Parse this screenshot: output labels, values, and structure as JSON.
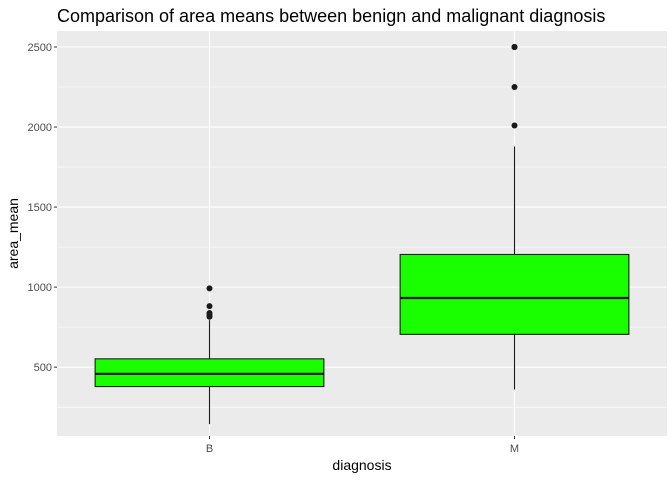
{
  "chart_data": {
    "type": "boxplot",
    "title": "Comparison of area means between benign and malignant diagnosis",
    "xlabel": "diagnosis",
    "ylabel": "area_mean",
    "categories": [
      "B",
      "M"
    ],
    "ylim": [
      70,
      2600
    ],
    "yticks": [
      500,
      1000,
      1500,
      2000,
      2500
    ],
    "ytick_labels": [
      "500",
      "1000",
      "1500",
      "2000",
      "2500"
    ],
    "grid": true,
    "legend": "none",
    "colors": {
      "box_fill": "#1aff00",
      "panel_bg": "#ebebeb",
      "grid": "#ffffff",
      "line": "#1a1a1a"
    },
    "boxes": [
      {
        "category": "B",
        "whisker_low": 144,
        "q1": 379,
        "median": 458,
        "q3": 552,
        "whisker_high": 794,
        "outliers": [
          992,
          881,
          838,
          825,
          815
        ]
      },
      {
        "category": "M",
        "whisker_low": 361,
        "q1": 705,
        "median": 932,
        "q3": 1204,
        "whisker_high": 1878,
        "outliers": [
          2010,
          2250,
          2499,
          2501
        ]
      }
    ]
  }
}
